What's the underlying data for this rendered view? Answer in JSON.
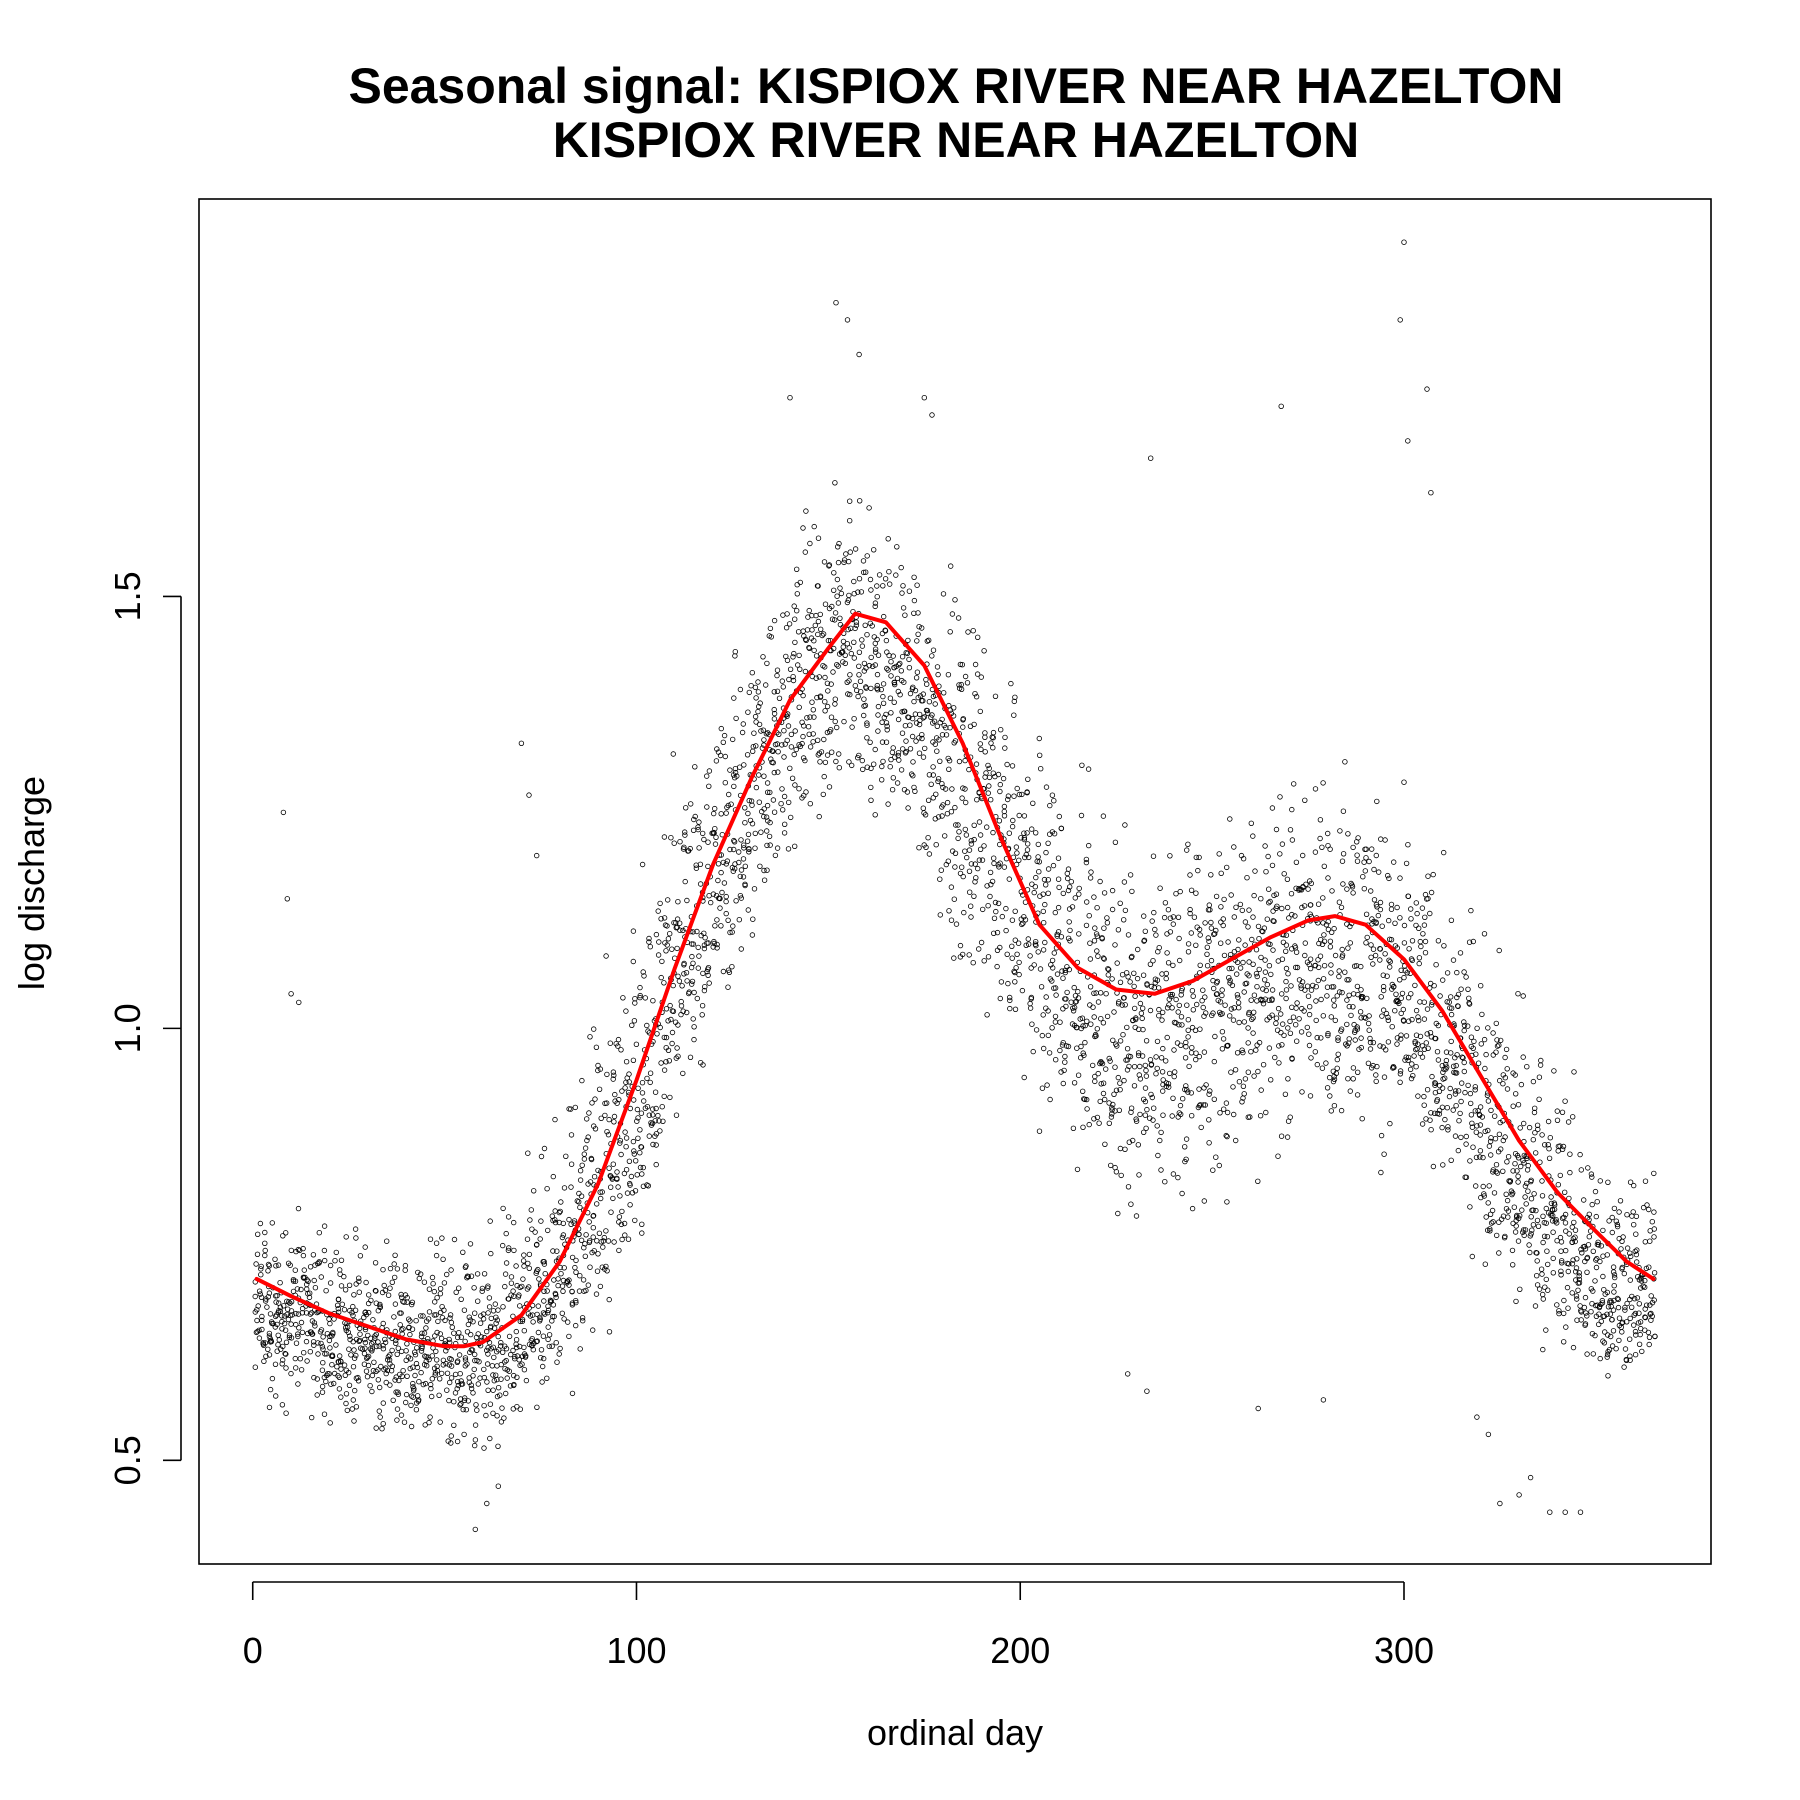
{
  "chart_data": {
    "type": "scatter",
    "title": "Seasonal signal: KISPIOX RIVER NEAR HAZELTON",
    "subtitle": "KISPIOX RIVER NEAR HAZELTON",
    "xlabel": "ordinal day",
    "ylabel": "log discharge",
    "xlim": [
      -14,
      380
    ],
    "ylim": [
      0.38,
      1.96
    ],
    "x_ticks": [
      "0",
      "100",
      "200",
      "300"
    ],
    "y_ticks": [
      "0.5",
      "1.0",
      "1.5"
    ],
    "grid": false,
    "legend": "none",
    "colors": {
      "points": "#000000",
      "smooth": "#ff0000"
    },
    "point_marker": "open circle",
    "scatter_envelope": [
      {
        "day": 1,
        "low": 0.55,
        "center": 0.68,
        "high": 0.82
      },
      {
        "day": 20,
        "low": 0.52,
        "center": 0.65,
        "high": 0.8
      },
      {
        "day": 40,
        "low": 0.5,
        "center": 0.63,
        "high": 0.78
      },
      {
        "day": 60,
        "low": 0.48,
        "center": 0.63,
        "high": 0.8
      },
      {
        "day": 80,
        "low": 0.55,
        "center": 0.7,
        "high": 0.95
      },
      {
        "day": 95,
        "low": 0.62,
        "center": 0.85,
        "high": 1.15
      },
      {
        "day": 110,
        "low": 0.85,
        "center": 1.05,
        "high": 1.35
      },
      {
        "day": 125,
        "low": 1.0,
        "center": 1.22,
        "high": 1.48
      },
      {
        "day": 140,
        "low": 1.15,
        "center": 1.38,
        "high": 1.62
      },
      {
        "day": 155,
        "low": 1.22,
        "center": 1.45,
        "high": 1.7
      },
      {
        "day": 170,
        "low": 1.15,
        "center": 1.4,
        "high": 1.62
      },
      {
        "day": 185,
        "low": 1.0,
        "center": 1.27,
        "high": 1.55
      },
      {
        "day": 200,
        "low": 0.88,
        "center": 1.15,
        "high": 1.45
      },
      {
        "day": 215,
        "low": 0.8,
        "center": 1.05,
        "high": 1.35
      },
      {
        "day": 230,
        "low": 0.72,
        "center": 0.98,
        "high": 1.3
      },
      {
        "day": 250,
        "low": 0.75,
        "center": 1.02,
        "high": 1.32
      },
      {
        "day": 270,
        "low": 0.8,
        "center": 1.08,
        "high": 1.35
      },
      {
        "day": 290,
        "low": 0.82,
        "center": 1.08,
        "high": 1.35
      },
      {
        "day": 310,
        "low": 0.78,
        "center": 0.98,
        "high": 1.25
      },
      {
        "day": 330,
        "low": 0.62,
        "center": 0.83,
        "high": 1.1
      },
      {
        "day": 350,
        "low": 0.56,
        "center": 0.7,
        "high": 0.95
      },
      {
        "day": 365,
        "low": 0.58,
        "center": 0.68,
        "high": 0.88
      }
    ],
    "outliers": [
      {
        "x": 8,
        "y": 1.25
      },
      {
        "x": 9,
        "y": 1.15
      },
      {
        "x": 10,
        "y": 1.04
      },
      {
        "x": 12,
        "y": 1.03
      },
      {
        "x": 70,
        "y": 1.33
      },
      {
        "x": 72,
        "y": 1.27
      },
      {
        "x": 74,
        "y": 1.2
      },
      {
        "x": 152,
        "y": 1.84
      },
      {
        "x": 155,
        "y": 1.82
      },
      {
        "x": 158,
        "y": 1.78
      },
      {
        "x": 175,
        "y": 1.73
      },
      {
        "x": 177,
        "y": 1.71
      },
      {
        "x": 140,
        "y": 1.73
      },
      {
        "x": 299,
        "y": 1.82
      },
      {
        "x": 300,
        "y": 1.91
      },
      {
        "x": 301,
        "y": 1.68
      },
      {
        "x": 306,
        "y": 1.74
      },
      {
        "x": 307,
        "y": 1.62
      },
      {
        "x": 268,
        "y": 1.72
      },
      {
        "x": 234,
        "y": 1.66
      },
      {
        "x": 325,
        "y": 0.45
      },
      {
        "x": 330,
        "y": 0.46
      },
      {
        "x": 333,
        "y": 0.48
      },
      {
        "x": 338,
        "y": 0.44
      },
      {
        "x": 342,
        "y": 0.44
      },
      {
        "x": 346,
        "y": 0.44
      },
      {
        "x": 58,
        "y": 0.42
      },
      {
        "x": 61,
        "y": 0.45
      },
      {
        "x": 64,
        "y": 0.47
      },
      {
        "x": 228,
        "y": 0.6
      },
      {
        "x": 233,
        "y": 0.58
      },
      {
        "x": 262,
        "y": 0.56
      },
      {
        "x": 279,
        "y": 0.57
      },
      {
        "x": 319,
        "y": 0.55
      },
      {
        "x": 322,
        "y": 0.53
      }
    ],
    "series": [
      {
        "type": "line",
        "x": [
          1,
          10,
          20,
          30,
          40,
          50,
          55,
          60,
          70,
          80,
          90,
          100,
          110,
          120,
          130,
          140,
          150,
          157,
          165,
          175,
          185,
          195,
          205,
          215,
          225,
          235,
          245,
          255,
          265,
          275,
          282,
          290,
          300,
          310,
          320,
          330,
          340,
          350,
          358,
          365
        ],
        "y": [
          0.71,
          0.69,
          0.67,
          0.655,
          0.64,
          0.632,
          0.632,
          0.637,
          0.668,
          0.73,
          0.82,
          0.94,
          1.07,
          1.19,
          1.29,
          1.38,
          1.44,
          1.48,
          1.47,
          1.42,
          1.33,
          1.22,
          1.12,
          1.07,
          1.045,
          1.04,
          1.055,
          1.08,
          1.105,
          1.125,
          1.13,
          1.12,
          1.08,
          1.02,
          0.945,
          0.87,
          0.81,
          0.765,
          0.73,
          0.71
        ]
      }
    ]
  }
}
